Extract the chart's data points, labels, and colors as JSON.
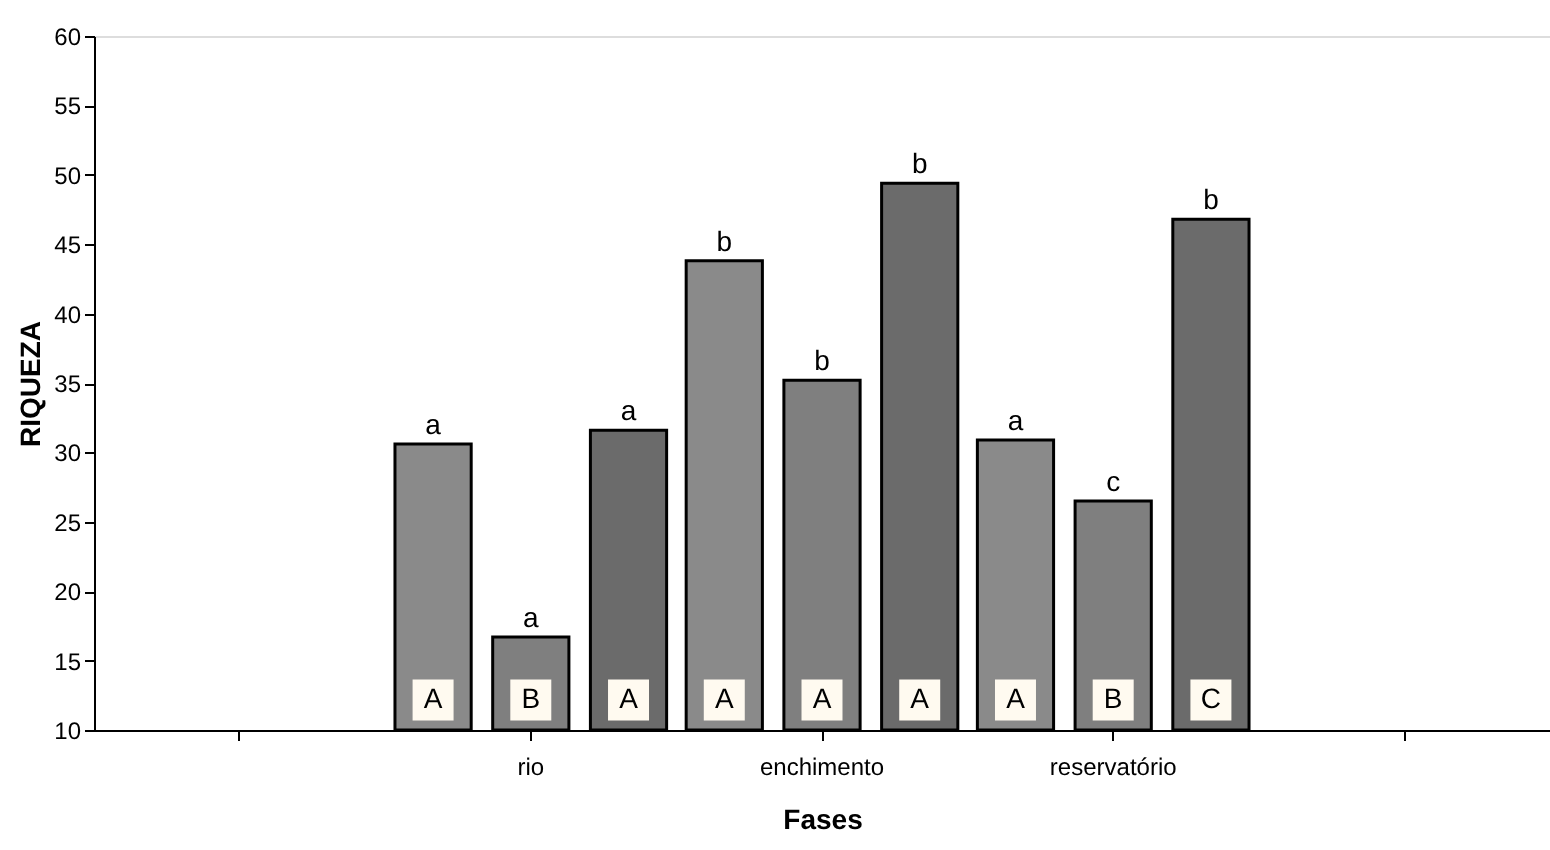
{
  "chart_data": {
    "type": "bar",
    "xlabel": "Fases",
    "ylabel": "RIQUEZA",
    "categories": [
      null,
      "rio",
      "enchimento",
      "reservatório",
      null
    ],
    "series": [
      {
        "color": "#8a8a8a",
        "values": [
          null,
          30.6,
          43.8,
          30.9,
          null
        ],
        "value_labels": [
          null,
          "a",
          "b",
          "a",
          null
        ]
      },
      {
        "color": "#7f7f7f",
        "values": [
          null,
          16.7,
          35.2,
          26.5,
          null
        ],
        "value_labels": [
          null,
          "a",
          "b",
          "c",
          null
        ]
      },
      {
        "color": "#6b6b6b",
        "values": [
          null,
          31.6,
          49.4,
          46.8,
          null
        ],
        "value_labels": [
          null,
          "a",
          "b",
          "b",
          null
        ]
      }
    ],
    "ylim": [
      10,
      60
    ],
    "yticks": [
      10,
      15,
      20,
      25,
      30,
      35,
      40,
      45,
      50,
      55,
      60
    ],
    "grid": false,
    "legend": false,
    "annotations": [
      "A",
      "B",
      "A",
      "A",
      "A",
      "A",
      "A",
      "B",
      "C"
    ]
  }
}
